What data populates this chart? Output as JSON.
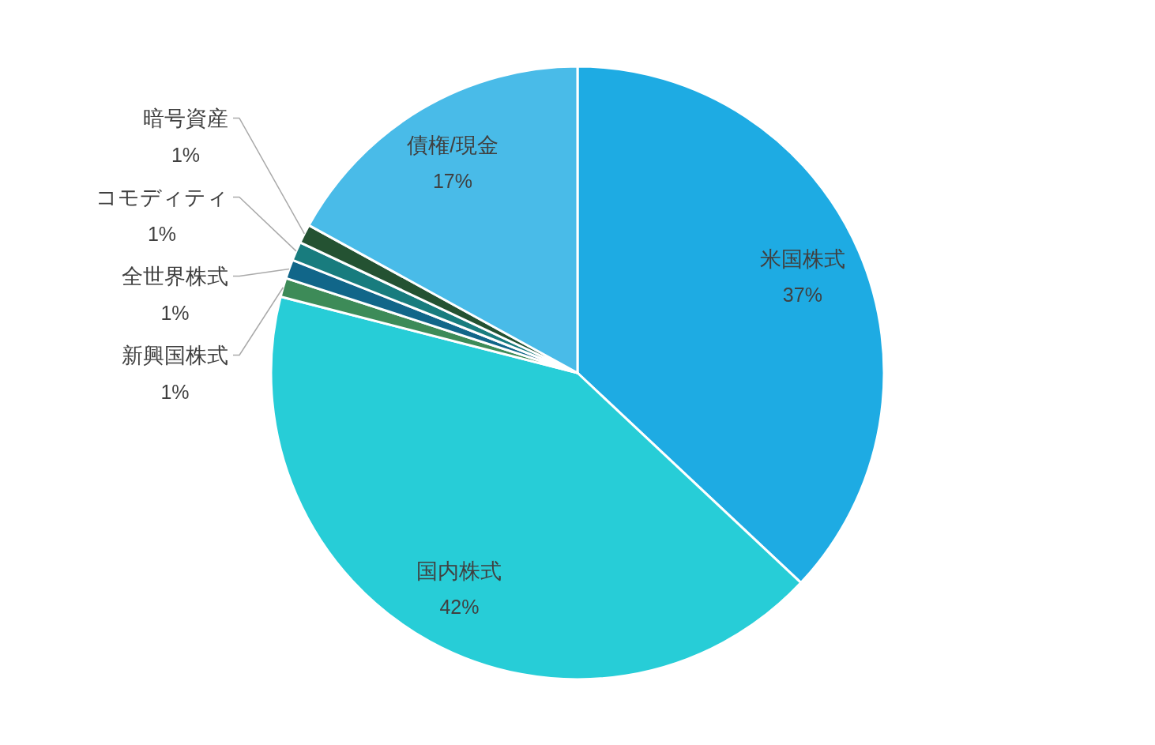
{
  "chart_data": {
    "type": "pie",
    "categories": [
      "米国株式",
      "国内株式",
      "新興国株式",
      "全世界株式",
      "コモディティ",
      "暗号資産",
      "債権/現金"
    ],
    "values": [
      37,
      42,
      1,
      1,
      1,
      1,
      17
    ],
    "colors": [
      "#1eabe3",
      "#27cdd7",
      "#3d8b58",
      "#116689",
      "#187c7e",
      "#245232",
      "#49bbe8"
    ],
    "value_labels": [
      "37%",
      "42%",
      "1%",
      "1%",
      "1%",
      "1%",
      "17%"
    ]
  }
}
